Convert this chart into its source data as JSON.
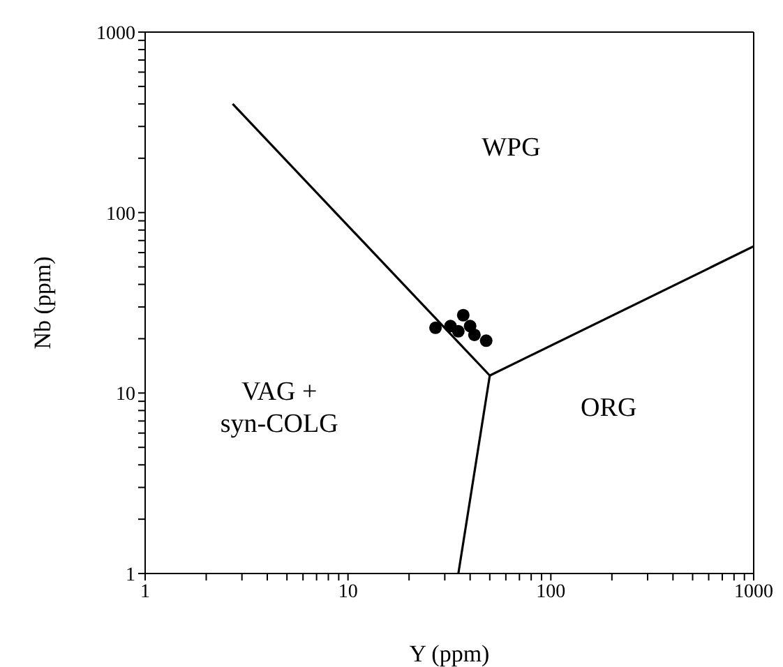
{
  "chart_data": {
    "type": "scatter",
    "xlabel": "Y (ppm)",
    "ylabel": "Nb (ppm)",
    "log": "xy",
    "legend": false,
    "xlim": [
      1,
      1000
    ],
    "ylim": [
      1,
      1000
    ],
    "xticks": [
      1,
      {
        "value": 2,
        "label": null
      },
      {
        "value": 3,
        "label": null
      },
      {
        "value": 4,
        "label": null
      },
      {
        "value": 5,
        "label": null
      },
      {
        "value": 6,
        "label": null
      },
      {
        "value": 7,
        "label": null
      },
      {
        "value": 8,
        "label": null
      },
      {
        "value": 9,
        "label": null
      },
      10,
      {
        "value": 20,
        "label": null
      },
      {
        "value": 30,
        "label": null
      },
      {
        "value": 40,
        "label": null
      },
      {
        "value": 50,
        "label": null
      },
      {
        "value": 60,
        "label": null
      },
      {
        "value": 70,
        "label": null
      },
      {
        "value": 80,
        "label": null
      },
      {
        "value": 90,
        "label": null
      },
      100,
      {
        "value": 200,
        "label": null
      },
      {
        "value": 300,
        "label": null
      },
      {
        "value": 400,
        "label": null
      },
      {
        "value": 500,
        "label": null
      },
      {
        "value": 600,
        "label": null
      },
      {
        "value": 700,
        "label": null
      },
      {
        "value": 800,
        "label": null
      },
      {
        "value": 900,
        "label": null
      },
      1000
    ],
    "yticks": [
      1,
      {
        "value": 2,
        "label": null
      },
      {
        "value": 3,
        "label": null
      },
      {
        "value": 4,
        "label": null
      },
      {
        "value": 5,
        "label": null
      },
      {
        "value": 6,
        "label": null
      },
      {
        "value": 7,
        "label": null
      },
      {
        "value": 8,
        "label": null
      },
      {
        "value": 9,
        "label": null
      },
      10,
      {
        "value": 20,
        "label": null
      },
      {
        "value": 30,
        "label": null
      },
      {
        "value": 40,
        "label": null
      },
      {
        "value": 50,
        "label": null
      },
      {
        "value": 60,
        "label": null
      },
      {
        "value": 70,
        "label": null
      },
      {
        "value": 80,
        "label": null
      },
      {
        "value": 90,
        "label": null
      },
      100,
      {
        "value": 200,
        "label": null
      },
      {
        "value": 300,
        "label": null
      },
      {
        "value": 400,
        "label": null
      },
      {
        "value": 500,
        "label": null
      },
      {
        "value": 600,
        "label": null
      },
      {
        "value": 700,
        "label": null
      },
      {
        "value": 800,
        "label": null
      },
      {
        "value": 900,
        "label": null
      },
      1000
    ],
    "annotations": [
      "WPG",
      "VAG +\nsyn-COLG",
      "ORG"
    ],
    "series": [
      {
        "marker": "circle",
        "color": "#000000",
        "x": [
          27,
          32,
          37,
          35,
          40,
          42,
          48
        ],
        "values": [
          23,
          23.5,
          27,
          22,
          23.5,
          21,
          19.5
        ]
      },
      {
        "type": "line",
        "color": "#000000",
        "line_style": "solid",
        "x": [
          2.7,
          50,
          1000
        ],
        "values": [
          400,
          12.5,
          65
        ]
      },
      {
        "type": "line",
        "color": "#000000",
        "line_style": "solid",
        "x": [
          50,
          35
        ],
        "values": [
          12.5,
          1
        ]
      }
    ]
  }
}
